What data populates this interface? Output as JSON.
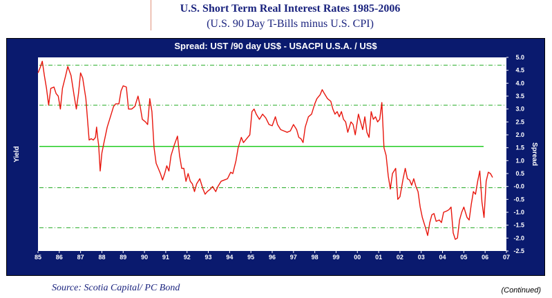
{
  "header": {
    "title": "U.S. Short Term Real Interest Rates 1985-2006",
    "subtitle": "(U.S. 90 Day T-Bills minus U.S. CPI)"
  },
  "footer": {
    "source": "Source: Scotia Capital/ PC Bond",
    "continued": "(Continued)"
  },
  "colors": {
    "frame": "#0a1a6e",
    "series": "#e8150c",
    "mean_line": "#22cc22",
    "band_lines": "#22aa22",
    "header_text": "#1a237e"
  },
  "chart_data": {
    "type": "line",
    "title": "Spread: UST /90 day US$  -  USACPI U.S.A. / US$",
    "ylabel_left": "Yield",
    "ylabel_right": "Spread",
    "x_tick_labels": [
      "85",
      "86",
      "87",
      "88",
      "89",
      "90",
      "91",
      "92",
      "93",
      "94",
      "95",
      "96",
      "97",
      "98",
      "99",
      "00",
      "01",
      "02",
      "03",
      "04",
      "05",
      "06",
      "07"
    ],
    "xlim": [
      1985,
      2007
    ],
    "ylim": [
      -2.5,
      5.0
    ],
    "y_tick_labels": [
      "5.0",
      "4.5",
      "4.0",
      "3.5",
      "3.0",
      "2.5",
      "2.0",
      "1.5",
      "1.0",
      "0.5",
      "-0.0",
      "-0.5",
      "-1.0",
      "-1.5",
      "-2.0",
      "-2.5"
    ],
    "grid": false,
    "reference_lines": [
      {
        "kind": "mean",
        "y": 1.55,
        "style": "solid"
      },
      {
        "kind": "plus_2sd",
        "y": 4.7,
        "style": "dash-dot"
      },
      {
        "kind": "plus_1sd",
        "y": 3.15,
        "style": "dash-dot"
      },
      {
        "kind": "minus_1sd",
        "y": -0.05,
        "style": "dash-dot"
      },
      {
        "kind": "minus_2sd",
        "y": -1.6,
        "style": "dash-dot"
      }
    ],
    "series": [
      {
        "points": [
          [
            1985.0,
            4.4
          ],
          [
            1985.1,
            4.6
          ],
          [
            1985.2,
            4.85
          ],
          [
            1985.3,
            4.3
          ],
          [
            1985.4,
            3.8
          ],
          [
            1985.5,
            3.15
          ],
          [
            1985.6,
            3.8
          ],
          [
            1985.75,
            3.85
          ],
          [
            1985.85,
            3.6
          ],
          [
            1985.95,
            3.5
          ],
          [
            1986.05,
            3.0
          ],
          [
            1986.15,
            3.8
          ],
          [
            1986.3,
            4.3
          ],
          [
            1986.4,
            4.65
          ],
          [
            1986.55,
            4.3
          ],
          [
            1986.7,
            3.5
          ],
          [
            1986.8,
            3.0
          ],
          [
            1986.9,
            3.6
          ],
          [
            1987.0,
            4.4
          ],
          [
            1987.1,
            4.2
          ],
          [
            1987.25,
            3.4
          ],
          [
            1987.4,
            1.8
          ],
          [
            1987.5,
            1.85
          ],
          [
            1987.6,
            1.8
          ],
          [
            1987.7,
            1.9
          ],
          [
            1987.75,
            2.3
          ],
          [
            1987.8,
            1.9
          ],
          [
            1987.85,
            1.6
          ],
          [
            1987.92,
            0.6
          ],
          [
            1988.0,
            1.3
          ],
          [
            1988.1,
            1.7
          ],
          [
            1988.25,
            2.3
          ],
          [
            1988.4,
            2.7
          ],
          [
            1988.55,
            3.1
          ],
          [
            1988.65,
            3.2
          ],
          [
            1988.8,
            3.2
          ],
          [
            1988.9,
            3.7
          ],
          [
            1989.0,
            3.9
          ],
          [
            1989.15,
            3.85
          ],
          [
            1989.25,
            3.0
          ],
          [
            1989.4,
            3.0
          ],
          [
            1989.55,
            3.1
          ],
          [
            1989.7,
            3.5
          ],
          [
            1989.8,
            3.1
          ],
          [
            1989.9,
            2.6
          ],
          [
            1990.05,
            2.5
          ],
          [
            1990.15,
            2.4
          ],
          [
            1990.25,
            3.4
          ],
          [
            1990.35,
            2.9
          ],
          [
            1990.45,
            1.5
          ],
          [
            1990.55,
            0.9
          ],
          [
            1990.65,
            0.7
          ],
          [
            1990.75,
            0.5
          ],
          [
            1990.85,
            0.25
          ],
          [
            1990.95,
            0.5
          ],
          [
            1991.05,
            0.8
          ],
          [
            1991.15,
            0.6
          ],
          [
            1991.25,
            1.2
          ],
          [
            1991.4,
            1.6
          ],
          [
            1991.55,
            1.95
          ],
          [
            1991.65,
            1.2
          ],
          [
            1991.75,
            0.7
          ],
          [
            1991.85,
            0.7
          ],
          [
            1991.95,
            0.2
          ],
          [
            1992.05,
            0.5
          ],
          [
            1992.15,
            0.2
          ],
          [
            1992.25,
            0.1
          ],
          [
            1992.35,
            -0.2
          ],
          [
            1992.45,
            0.1
          ],
          [
            1992.6,
            0.3
          ],
          [
            1992.75,
            -0.1
          ],
          [
            1992.85,
            -0.3
          ],
          [
            1992.95,
            -0.2
          ],
          [
            1993.1,
            -0.1
          ],
          [
            1993.2,
            0.0
          ],
          [
            1993.35,
            -0.2
          ],
          [
            1993.45,
            0.0
          ],
          [
            1993.6,
            0.2
          ],
          [
            1993.75,
            0.25
          ],
          [
            1993.9,
            0.3
          ],
          [
            1994.05,
            0.55
          ],
          [
            1994.15,
            0.5
          ],
          [
            1994.3,
            1.0
          ],
          [
            1994.4,
            1.5
          ],
          [
            1994.55,
            1.9
          ],
          [
            1994.65,
            1.7
          ],
          [
            1994.8,
            1.85
          ],
          [
            1994.95,
            2.0
          ],
          [
            1995.05,
            2.9
          ],
          [
            1995.15,
            3.0
          ],
          [
            1995.25,
            2.8
          ],
          [
            1995.4,
            2.6
          ],
          [
            1995.55,
            2.8
          ],
          [
            1995.7,
            2.65
          ],
          [
            1995.85,
            2.4
          ],
          [
            1996.0,
            2.35
          ],
          [
            1996.15,
            2.7
          ],
          [
            1996.25,
            2.4
          ],
          [
            1996.4,
            2.2
          ],
          [
            1996.55,
            2.15
          ],
          [
            1996.7,
            2.1
          ],
          [
            1996.85,
            2.15
          ],
          [
            1997.0,
            2.4
          ],
          [
            1997.15,
            2.2
          ],
          [
            1997.25,
            1.9
          ],
          [
            1997.35,
            1.85
          ],
          [
            1997.45,
            1.7
          ],
          [
            1997.55,
            2.3
          ],
          [
            1997.7,
            2.7
          ],
          [
            1997.85,
            2.8
          ],
          [
            1998.0,
            3.2
          ],
          [
            1998.1,
            3.4
          ],
          [
            1998.25,
            3.55
          ],
          [
            1998.35,
            3.75
          ],
          [
            1998.45,
            3.6
          ],
          [
            1998.6,
            3.4
          ],
          [
            1998.75,
            3.3
          ],
          [
            1998.85,
            3.0
          ],
          [
            1998.95,
            2.8
          ],
          [
            1999.05,
            2.9
          ],
          [
            1999.15,
            2.7
          ],
          [
            1999.25,
            2.9
          ],
          [
            1999.35,
            2.6
          ],
          [
            1999.45,
            2.5
          ],
          [
            1999.55,
            2.1
          ],
          [
            1999.7,
            2.5
          ],
          [
            1999.8,
            2.4
          ],
          [
            1999.9,
            2.0
          ],
          [
            2000.05,
            2.8
          ],
          [
            2000.15,
            2.5
          ],
          [
            2000.25,
            2.2
          ],
          [
            2000.35,
            2.7
          ],
          [
            2000.45,
            2.1
          ],
          [
            2000.55,
            1.9
          ],
          [
            2000.65,
            2.9
          ],
          [
            2000.75,
            2.6
          ],
          [
            2000.85,
            2.7
          ],
          [
            2000.95,
            2.5
          ],
          [
            2001.05,
            2.6
          ],
          [
            2001.15,
            3.25
          ],
          [
            2001.25,
            1.5
          ],
          [
            2001.35,
            1.2
          ],
          [
            2001.45,
            0.4
          ],
          [
            2001.55,
            -0.1
          ],
          [
            2001.65,
            0.5
          ],
          [
            2001.8,
            0.7
          ],
          [
            2001.9,
            -0.5
          ],
          [
            2002.0,
            -0.4
          ],
          [
            2002.15,
            0.3
          ],
          [
            2002.25,
            0.7
          ],
          [
            2002.35,
            0.3
          ],
          [
            2002.45,
            0.25
          ],
          [
            2002.55,
            0.05
          ],
          [
            2002.65,
            0.3
          ],
          [
            2002.75,
            0.0
          ],
          [
            2002.85,
            -0.2
          ],
          [
            2002.95,
            -0.8
          ],
          [
            2003.05,
            -1.2
          ],
          [
            2003.2,
            -1.6
          ],
          [
            2003.3,
            -1.9
          ],
          [
            2003.4,
            -1.4
          ],
          [
            2003.5,
            -1.1
          ],
          [
            2003.6,
            -1.05
          ],
          [
            2003.7,
            -1.35
          ],
          [
            2003.85,
            -1.3
          ],
          [
            2003.95,
            -1.4
          ],
          [
            2004.05,
            -1.0
          ],
          [
            2004.2,
            -0.95
          ],
          [
            2004.3,
            -0.9
          ],
          [
            2004.4,
            -0.8
          ],
          [
            2004.5,
            -1.8
          ],
          [
            2004.6,
            -2.05
          ],
          [
            2004.7,
            -2.0
          ],
          [
            2004.8,
            -1.3
          ],
          [
            2004.9,
            -1.0
          ],
          [
            2005.0,
            -0.8
          ],
          [
            2005.15,
            -1.2
          ],
          [
            2005.25,
            -1.3
          ],
          [
            2005.35,
            -0.7
          ],
          [
            2005.45,
            -0.2
          ],
          [
            2005.55,
            -0.3
          ],
          [
            2005.65,
            0.2
          ],
          [
            2005.75,
            0.6
          ],
          [
            2005.85,
            -0.6
          ],
          [
            2005.95,
            -1.2
          ],
          [
            2006.05,
            0.2
          ],
          [
            2006.15,
            0.55
          ],
          [
            2006.25,
            0.5
          ],
          [
            2006.35,
            0.35
          ]
        ]
      }
    ]
  }
}
